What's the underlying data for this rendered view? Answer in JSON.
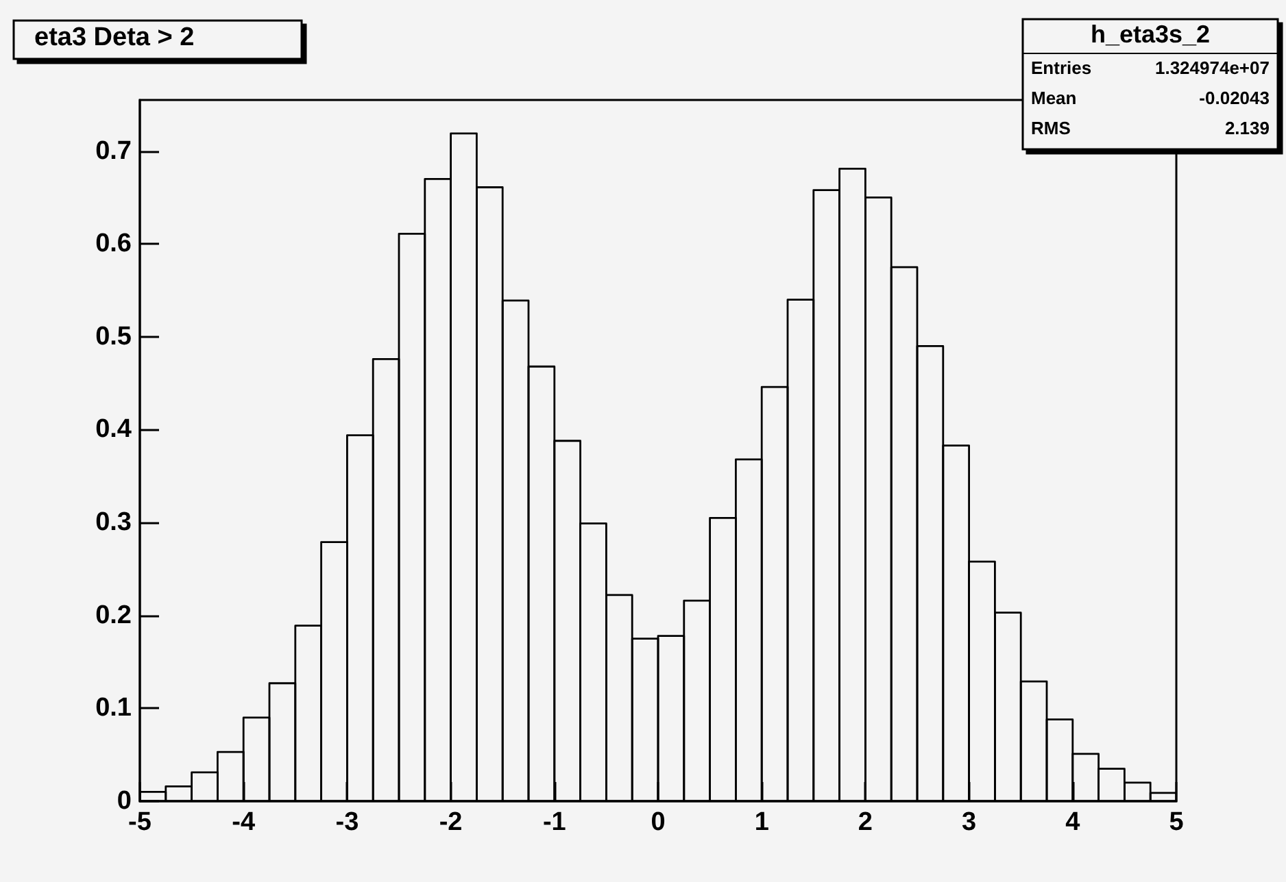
{
  "chart_data": {
    "type": "histogram",
    "title": "eta3 Deta > 2",
    "bins": [
      -5,
      -4.75,
      -4.5,
      -4.25,
      -4,
      -3.75,
      -3.5,
      -3.25,
      -3,
      -2.75,
      -2.5,
      -2.25,
      -2,
      -1.75,
      -1.5,
      -1.25,
      -1,
      -0.75,
      -0.5,
      -0.25,
      0,
      0.25,
      0.5,
      0.75,
      1,
      1.25,
      1.5,
      1.75,
      2,
      2.25,
      2.5,
      2.75,
      3,
      3.25,
      3.5,
      3.75,
      4,
      4.25,
      4.5,
      4.75,
      5
    ],
    "values": [
      0.01,
      0.016,
      0.031,
      0.053,
      0.09,
      0.127,
      0.189,
      0.279,
      0.394,
      0.476,
      0.611,
      0.67,
      0.719,
      0.661,
      0.539,
      0.468,
      0.388,
      0.299,
      0.222,
      0.175,
      0.178,
      0.216,
      0.305,
      0.368,
      0.446,
      0.54,
      0.658,
      0.681,
      0.65,
      0.575,
      0.49,
      0.383,
      0.258,
      0.203,
      0.129,
      0.088,
      0.051,
      0.035,
      0.02,
      0.009
    ],
    "color": "#000000",
    "xlim": [
      -5,
      5
    ],
    "xticks": [
      -5,
      -4,
      -3,
      -2,
      -1,
      0,
      1,
      2,
      3,
      4,
      5
    ],
    "ylim": [
      0,
      0.755
    ],
    "yticks": [
      0,
      0.1,
      0.2,
      0.3,
      0.4,
      0.5,
      0.6,
      0.7
    ],
    "annotations": [
      "h_eta3s_2",
      "Entries",
      "1.324974e+07",
      "Mean",
      "-0.02043",
      "RMS",
      "2.139"
    ]
  }
}
